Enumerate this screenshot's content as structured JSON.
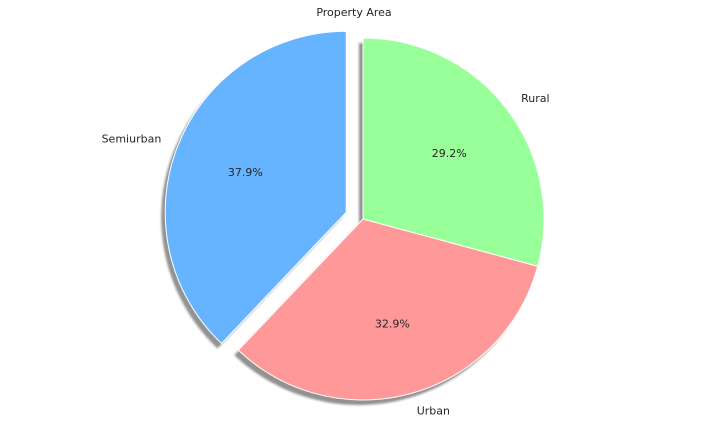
{
  "chart_data": {
    "type": "pie",
    "title": "Property Area",
    "labels": [
      "Semiurban",
      "Urban",
      "Rural"
    ],
    "values": [
      37.9,
      32.9,
      29.2
    ],
    "value_labels": [
      "37.9%",
      "32.9%",
      "29.2%"
    ],
    "colors": [
      "#66b3ff",
      "#ff9999",
      "#99ff99"
    ],
    "explode": [
      0.1,
      0,
      0
    ],
    "start_angle_deg": 90,
    "shadow": true
  }
}
